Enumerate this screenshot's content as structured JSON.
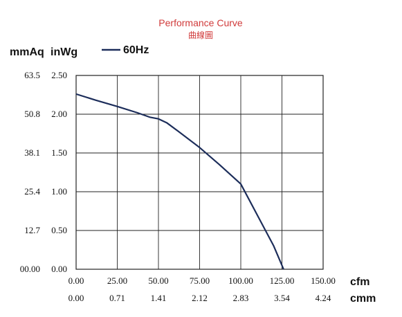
{
  "chart_data": {
    "type": "line",
    "title": "Performance Curve",
    "subtitle": "曲線圖",
    "y_unit_left": "mmAq",
    "y_unit_right": "inWg",
    "x_unit_primary": "cfm",
    "x_unit_secondary": "cmm",
    "xlim": [
      0,
      150
    ],
    "ylim": [
      0,
      2.5
    ],
    "x_ticks": [
      "0.00",
      "25.00",
      "50.00",
      "75.00",
      "100.00",
      "125.00",
      "150.00"
    ],
    "x_ticks_secondary": [
      "0.00",
      "0.71",
      "1.41",
      "2.12",
      "2.83",
      "3.54",
      "4.24"
    ],
    "y_ticks_inwg": [
      "0.00",
      "0.50",
      "1.00",
      "1.50",
      "2.00",
      "2.50"
    ],
    "y_ticks_mmaq": [
      "00.00",
      "12.7",
      "25.4",
      "38.1",
      "50.8",
      "63.5"
    ],
    "grid": true,
    "series": [
      {
        "name": "60Hz",
        "color": "#1c2d5a",
        "points": [
          [
            0,
            2.26
          ],
          [
            12,
            2.18
          ],
          [
            25,
            2.1
          ],
          [
            37,
            2.02
          ],
          [
            45,
            1.96
          ],
          [
            50,
            1.94
          ],
          [
            55,
            1.89
          ],
          [
            62,
            1.78
          ],
          [
            75,
            1.57
          ],
          [
            87,
            1.35
          ],
          [
            100,
            1.1
          ],
          [
            110,
            0.7
          ],
          [
            120,
            0.3
          ],
          [
            126,
            0.0
          ]
        ]
      }
    ]
  }
}
